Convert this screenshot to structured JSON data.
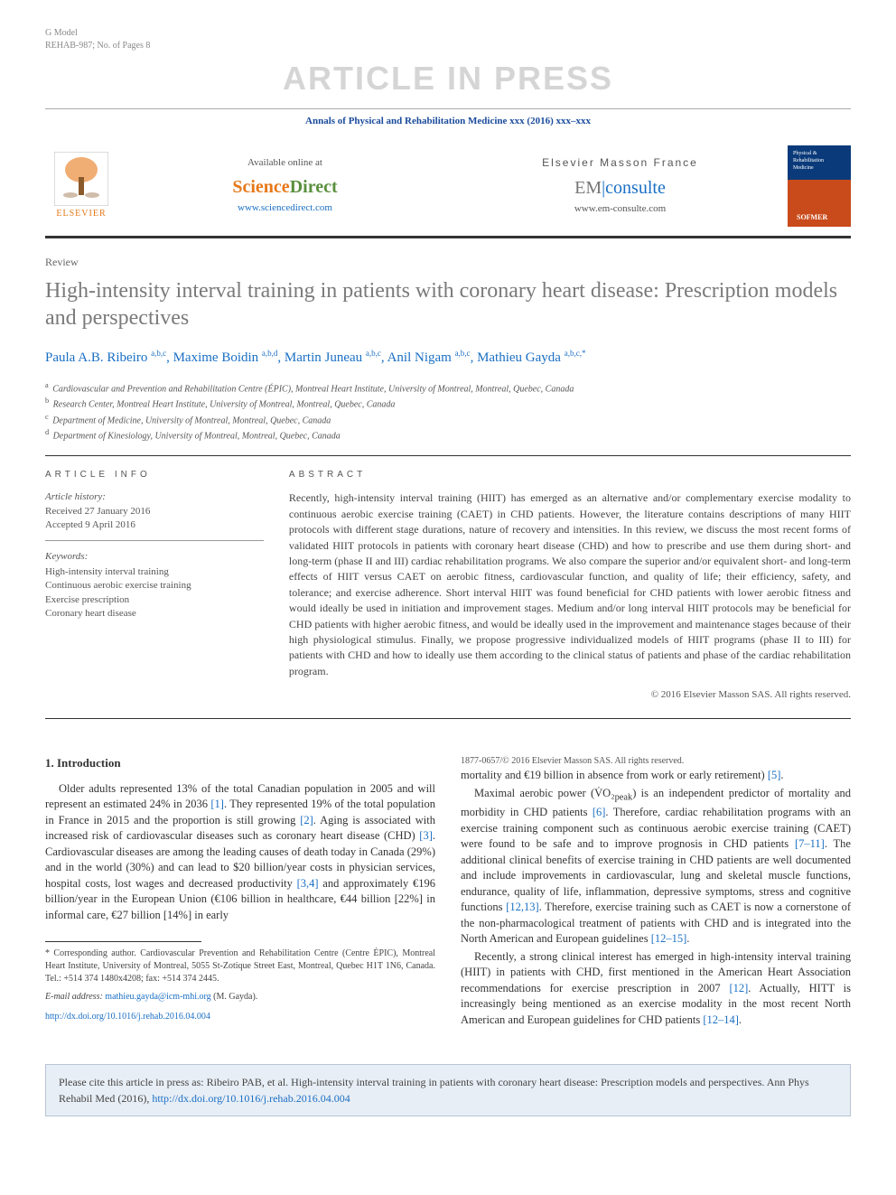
{
  "header": {
    "gmodel": "G Model",
    "article_id": "REHAB-987; No. of Pages 8",
    "watermark": "ARTICLE IN PRESS",
    "journal_citation": "Annals of Physical and Rehabilitation Medicine xxx (2016) xxx–xxx",
    "pub_logo_text": "ELSEVIER",
    "available_text": "Available online at",
    "sd_science": "Science",
    "sd_direct": "Direct",
    "sd_url": "www.sciencedirect.com",
    "em_title": "Elsevier Masson France",
    "em_em": "EM",
    "em_consulte": "consulte",
    "em_url": "www.em-consulte.com",
    "cover_line1": "Physical &",
    "cover_line2": "Rehabilitation",
    "cover_line3": "Medicine",
    "cover_brand": "SOFMER"
  },
  "meta": {
    "article_type": "Review",
    "title": "High-intensity interval training in patients with coronary heart disease: Prescription models and perspectives",
    "authors_html": "Paula A.B. Ribeiro <sup>a,b,c</sup>, Maxime Boidin <sup>a,b,d</sup>, Martin Juneau <sup>a,b,c</sup>, Anil Nigam <sup>a,b,c</sup>, Mathieu Gayda <sup>a,b,c,*</sup>",
    "affiliations": [
      {
        "sup": "a",
        "text": "Cardiovascular and Prevention and Rehabilitation Centre (ÉPIC), Montreal Heart Institute, University of Montreal, Montreal, Quebec, Canada"
      },
      {
        "sup": "b",
        "text": "Research Center, Montreal Heart Institute, University of Montreal, Montreal, Quebec, Canada"
      },
      {
        "sup": "c",
        "text": "Department of Medicine, University of Montreal, Montreal, Quebec, Canada"
      },
      {
        "sup": "d",
        "text": "Department of Kinesiology, University of Montreal, Montreal, Quebec, Canada"
      }
    ]
  },
  "info": {
    "info_head": "ARTICLE INFO",
    "history_label": "Article history:",
    "received": "Received 27 January 2016",
    "accepted": "Accepted 9 April 2016",
    "keywords_label": "Keywords:",
    "keywords": [
      "High-intensity interval training",
      "Continuous aerobic exercise training",
      "Exercise prescription",
      "Coronary heart disease"
    ]
  },
  "abstract": {
    "head": "ABSTRACT",
    "body": "Recently, high-intensity interval training (HIIT) has emerged as an alternative and/or complementary exercise modality to continuous aerobic exercise training (CAET) in CHD patients. However, the literature contains descriptions of many HIIT protocols with different stage durations, nature of recovery and intensities. In this review, we discuss the most recent forms of validated HIIT protocols in patients with coronary heart disease (CHD) and how to prescribe and use them during short- and long-term (phase II and III) cardiac rehabilitation programs. We also compare the superior and/or equivalent short- and long-term effects of HIIT versus CAET on aerobic fitness, cardiovascular function, and quality of life; their efficiency, safety, and tolerance; and exercise adherence. Short interval HIIT was found beneficial for CHD patients with lower aerobic fitness and would ideally be used in initiation and improvement stages. Medium and/or long interval HIIT protocols may be beneficial for CHD patients with higher aerobic fitness, and would be ideally used in the improvement and maintenance stages because of their high physiological stimulus. Finally, we propose progressive individualized models of HIIT programs (phase II to III) for patients with CHD and how to ideally use them according to the clinical status of patients and phase of the cardiac rehabilitation program.",
    "copyright": "© 2016 Elsevier Masson SAS. All rights reserved."
  },
  "body": {
    "sec1_head": "1. Introduction",
    "p1_a": "Older adults represented 13% of the total Canadian population in 2005 and will represent an estimated 24% in 2036 ",
    "ref1": "[1]",
    "p1_b": ". They represented 19% of the total population in France in 2015 and the proportion is still growing ",
    "ref2": "[2]",
    "p1_c": ". Aging is associated with increased risk of cardiovascular diseases such as coronary heart disease (CHD) ",
    "ref3": "[3]",
    "p1_d": ". Cardiovascular diseases are among the leading causes of death today in Canada (29%) and in the world (30%) and can lead to $20 billion/year costs in physician services, hospital costs, lost wages and decreased productivity ",
    "ref34": "[3,4]",
    "p1_e": " and approximately €196 billion/year in the European Union (€106 billion in healthcare, €44 billion [22%] in informal care, €27 billion [14%] in early ",
    "p1_f": "mortality and €19 billion in absence from work or early retirement) ",
    "ref5": "[5]",
    "p1_g": ".",
    "p2_a": "Maximal aerobic power (V̇O₂",
    "p2_sub": "peak",
    "p2_b": ") is an independent predictor of mortality and morbidity in CHD patients ",
    "ref6": "[6]",
    "p2_c": ". Therefore, cardiac rehabilitation programs with an exercise training component such as continuous aerobic exercise training (CAET) were found to be safe and to improve prognosis in CHD patients ",
    "ref711": "[7–11]",
    "p2_d": ". The additional clinical benefits of exercise training in CHD patients are well documented and include improvements in cardiovascular, lung and skeletal muscle functions, endurance, quality of life, inflammation, depressive symptoms, stress and cognitive functions ",
    "ref1213": "[12,13]",
    "p2_e": ". Therefore, exercise training such as CAET is now a cornerstone of the non-pharmacological treatment of patients with CHD and is integrated into the North American and European guidelines ",
    "ref1215": "[12–15]",
    "p2_f": ".",
    "p3_a": "Recently, a strong clinical interest has emerged in high-intensity interval training (HIIT) in patients with CHD, first mentioned in the American Heart Association recommendations for exercise prescription in 2007 ",
    "ref12": "[12]",
    "p3_b": ". Actually, HITT is increasingly being mentioned as an exercise modality in the most recent North American and European guidelines for CHD patients ",
    "ref1214": "[12–14]",
    "p3_c": "."
  },
  "footnote": {
    "corr": "* Corresponding author. Cardiovascular Prevention and Rehabilitation Centre (Centre ÉPIC), Montreal Heart Institute, University of Montreal, 5055 St-Zotique Street East, Montreal, Quebec H1T 1N6, Canada. Tel.: +514 374 1480x4208; fax: +514 374 2445.",
    "email_label": "E-mail address: ",
    "email": "mathieu.gayda@icm-mhi.org",
    "email_name": " (M. Gayda).",
    "doi": "http://dx.doi.org/10.1016/j.rehab.2016.04.004",
    "doi_copy": "1877-0657/© 2016 Elsevier Masson SAS. All rights reserved."
  },
  "citebox": {
    "text_a": "Please cite this article in press as: Ribeiro PAB, et al. High-intensity interval training in patients with coronary heart disease: Prescription models and perspectives. Ann Phys Rehabil Med (2016), ",
    "link": "http://dx.doi.org/10.1016/j.rehab.2016.04.004"
  },
  "colors": {
    "link": "#1a6fc4",
    "orange": "#e67817",
    "title_grey": "#7a7a7a",
    "citebox_bg": "#e8eef5"
  }
}
